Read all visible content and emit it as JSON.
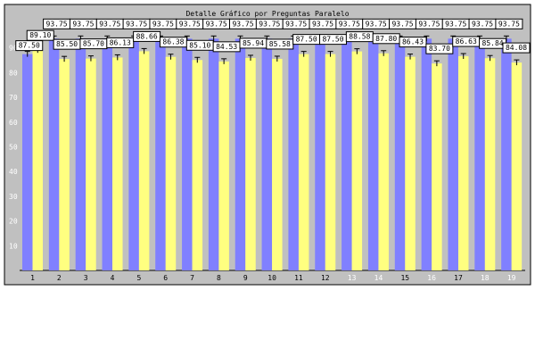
{
  "chart_data": {
    "type": "bar",
    "title": "Detalle Gráfico por Preguntas Paralelo",
    "xlabel": "",
    "ylabel": "",
    "ylim": [
      0,
      100
    ],
    "yticks": [
      10,
      20,
      30,
      40,
      50,
      60,
      70,
      80,
      90
    ],
    "grid": false,
    "legend": "none",
    "categories": [
      "1",
      "2",
      "3",
      "4",
      "5",
      "6",
      "7",
      "8",
      "9",
      "10",
      "11",
      "12",
      "13",
      "14",
      "15",
      "16",
      "17",
      "18",
      "19"
    ],
    "category_label_colors": [
      "#000000",
      "#000000",
      "#000000",
      "#000000",
      "#000000",
      "#000000",
      "#000000",
      "#000000",
      "#000000",
      "#000000",
      "#000000",
      "#000000",
      "#ffffff",
      "#ffffff",
      "#000000",
      "#ffffff",
      "#000000",
      "#ffffff",
      "#ffffff"
    ],
    "series": [
      {
        "color": "#8080ff",
        "values": [
          87.5,
          93.75,
          93.75,
          93.75,
          93.75,
          93.75,
          93.75,
          93.75,
          93.75,
          93.75,
          93.75,
          93.75,
          93.75,
          93.75,
          93.75,
          93.75,
          93.75,
          93.75,
          93.75
        ],
        "labels": [
          "87.50",
          "93.75",
          "93.75",
          "93.75",
          "93.75",
          "93.75",
          "93.75",
          "93.75",
          "93.75",
          "93.75",
          "93.75",
          "93.75",
          "93.75",
          "93.75",
          "93.75",
          "93.75",
          "93.75",
          "93.75",
          "93.75"
        ]
      },
      {
        "color": "#ffff80",
        "values": [
          89.1,
          85.5,
          85.7,
          86.13,
          88.66,
          86.38,
          85.1,
          84.53,
          85.94,
          85.58,
          87.5,
          87.5,
          88.58,
          87.8,
          86.43,
          83.7,
          86.63,
          85.84,
          84.08
        ],
        "labels": [
          "89.10",
          "85.50",
          "85.70",
          "86.13",
          "88.66",
          "86.38",
          "85.10",
          "84.53",
          "85.94",
          "85.58",
          "87.50",
          "87.50",
          "88.58",
          "87.80",
          "86.43",
          "83.70",
          "86.63",
          "85.84",
          "84.08"
        ]
      }
    ]
  }
}
